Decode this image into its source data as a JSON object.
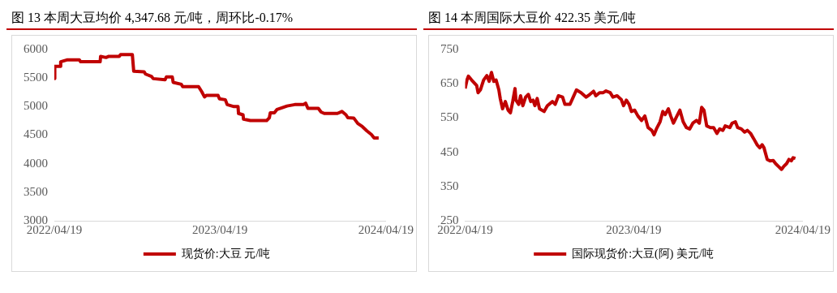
{
  "chart_data": [
    {
      "type": "line",
      "title": "图 13 本周大豆均价 4,347.68 元/吨，周环比-0.17%",
      "legend": "bottom",
      "marker": "none",
      "xlim": [
        "2022-04-19",
        "2024-04-19"
      ],
      "xticks": [
        {
          "value": "2022-04-19",
          "label": "2022/04/19"
        },
        {
          "value": "2023-04-19",
          "label": "2023/04/19"
        },
        {
          "value": "2024-04-19",
          "label": "2024/04/19"
        }
      ],
      "ylim": [
        3000,
        6000
      ],
      "yticks": [
        3000,
        3500,
        4000,
        4500,
        5000,
        5500,
        6000
      ],
      "series": [
        {
          "name": "现货价:大豆 元/吨",
          "color": "#c00000",
          "x": [
            "2022-04-19",
            "2022-04-20",
            "2022-05-02",
            "2022-05-03",
            "2022-05-18",
            "2022-06-13",
            "2022-06-16",
            "2022-07-29",
            "2022-07-30",
            "2022-08-11",
            "2022-08-17",
            "2022-09-09",
            "2022-09-12",
            "2022-10-08",
            "2022-10-11",
            "2022-11-03",
            "2022-11-06",
            "2022-11-19",
            "2022-11-23",
            "2022-12-19",
            "2022-12-22",
            "2023-01-04",
            "2023-01-06",
            "2023-01-24",
            "2023-01-27",
            "2023-03-03",
            "2023-03-10",
            "2023-03-16",
            "2023-03-20",
            "2023-04-15",
            "2023-04-18",
            "2023-05-01",
            "2023-05-05",
            "2023-05-20",
            "2023-05-29",
            "2023-05-30",
            "2023-06-09",
            "2023-06-10",
            "2023-06-25",
            "2023-07-31",
            "2023-08-06",
            "2023-08-08",
            "2023-08-17",
            "2023-08-23",
            "2023-09-05",
            "2023-09-14",
            "2023-10-01",
            "2023-10-20",
            "2023-10-25",
            "2023-10-30",
            "2023-11-22",
            "2023-11-28",
            "2023-12-05",
            "2024-01-03",
            "2024-01-13",
            "2024-01-22",
            "2024-01-26",
            "2024-02-08",
            "2024-02-17",
            "2024-02-27",
            "2024-03-08",
            "2024-03-18",
            "2024-03-24",
            "2024-04-03"
          ],
          "values": [
            5490,
            5705,
            5705,
            5785,
            5820,
            5820,
            5785,
            5785,
            5880,
            5860,
            5880,
            5880,
            5910,
            5910,
            5620,
            5610,
            5570,
            5530,
            5490,
            5470,
            5520,
            5520,
            5425,
            5390,
            5350,
            5350,
            5260,
            5170,
            5195,
            5195,
            5135,
            5120,
            5035,
            5000,
            5000,
            4880,
            4855,
            4780,
            4755,
            4755,
            4805,
            4890,
            4890,
            4950,
            4985,
            5010,
            5035,
            5035,
            5060,
            4970,
            4970,
            4905,
            4880,
            4880,
            4915,
            4855,
            4805,
            4800,
            4705,
            4650,
            4575,
            4510,
            4450,
            4450
          ]
        }
      ]
    },
    {
      "type": "line",
      "title": "图 14 本周国际大豆价 422.35 美元/吨",
      "legend": "bottom",
      "marker": "none",
      "xlim": [
        "2022-04-19",
        "2024-04-19"
      ],
      "xticks": [
        {
          "value": "2022-04-19",
          "label": "2022/04/19"
        },
        {
          "value": "2023-04-19",
          "label": "2023/04/19"
        },
        {
          "value": "2024-04-19",
          "label": "2024/04/19"
        }
      ],
      "ylim": [
        250,
        750
      ],
      "yticks": [
        250,
        350,
        450,
        550,
        650,
        750
      ],
      "series": [
        {
          "name": "国际现货价:大豆(阿) 美元/吨",
          "color": "#c00000",
          "x": [
            "2022-04-19",
            "2022-04-23",
            "2022-04-26",
            "2022-05-03",
            "2022-05-14",
            "2022-05-17",
            "2022-05-22",
            "2022-05-29",
            "2022-06-05",
            "2022-06-10",
            "2022-06-15",
            "2022-06-20",
            "2022-06-25",
            "2022-07-01",
            "2022-07-04",
            "2022-07-09",
            "2022-07-15",
            "2022-07-21",
            "2022-07-26",
            "2022-07-31",
            "2022-08-05",
            "2022-08-07",
            "2022-08-13",
            "2022-08-17",
            "2022-08-22",
            "2022-08-28",
            "2022-09-03",
            "2022-09-08",
            "2022-09-13",
            "2022-09-17",
            "2022-09-22",
            "2022-09-27",
            "2022-10-07",
            "2022-10-14",
            "2022-10-25",
            "2022-10-31",
            "2022-11-07",
            "2022-11-16",
            "2022-11-21",
            "2022-12-02",
            "2022-12-09",
            "2022-12-16",
            "2022-12-26",
            "2023-01-06",
            "2023-01-14",
            "2023-01-22",
            "2023-01-27",
            "2023-02-04",
            "2023-02-12",
            "2023-02-18",
            "2023-02-27",
            "2023-03-05",
            "2023-03-14",
            "2023-03-23",
            "2023-03-28",
            "2023-04-03",
            "2023-04-09",
            "2023-04-14",
            "2023-04-21",
            "2023-04-28",
            "2023-05-06",
            "2023-05-13",
            "2023-05-20",
            "2023-05-28",
            "2023-06-02",
            "2023-06-07",
            "2023-06-15",
            "2023-06-21",
            "2023-06-26",
            "2023-07-03",
            "2023-07-08",
            "2023-07-14",
            "2023-07-20",
            "2023-07-28",
            "2023-08-04",
            "2023-08-11",
            "2023-08-18",
            "2023-08-25",
            "2023-09-02",
            "2023-09-08",
            "2023-09-13",
            "2023-09-18",
            "2023-09-24",
            "2023-10-02",
            "2023-10-09",
            "2023-10-16",
            "2023-10-22",
            "2023-10-29",
            "2023-11-03",
            "2023-11-13",
            "2023-11-18",
            "2023-11-25",
            "2023-11-30",
            "2023-12-08",
            "2023-12-15",
            "2023-12-21",
            "2023-12-28",
            "2024-01-04",
            "2024-01-11",
            "2024-01-17",
            "2024-01-22",
            "2024-01-26",
            "2024-02-02",
            "2024-02-08",
            "2024-02-15",
            "2024-02-20",
            "2024-02-26",
            "2024-03-04",
            "2024-03-09",
            "2024-03-15",
            "2024-03-20",
            "2024-03-25",
            "2024-03-29",
            "2024-04-03"
          ],
          "values": [
            636,
            661,
            672,
            661,
            645,
            624,
            632,
            661,
            674,
            657,
            683,
            657,
            661,
            632,
            607,
            577,
            598,
            573,
            565,
            598,
            636,
            602,
            590,
            615,
            586,
            611,
            619,
            598,
            602,
            586,
            607,
            577,
            569,
            586,
            598,
            590,
            615,
            611,
            590,
            590,
            611,
            632,
            624,
            611,
            619,
            628,
            615,
            624,
            624,
            629,
            624,
            611,
            615,
            604,
            586,
            602,
            590,
            569,
            573,
            556,
            543,
            556,
            522,
            514,
            501,
            518,
            539,
            569,
            560,
            577,
            556,
            535,
            552,
            573,
            539,
            522,
            518,
            535,
            543,
            535,
            581,
            573,
            527,
            522,
            522,
            505,
            518,
            514,
            527,
            522,
            535,
            539,
            522,
            518,
            509,
            514,
            505,
            489,
            472,
            463,
            472,
            463,
            429,
            425,
            426,
            417,
            409,
            400,
            409,
            417,
            429,
            425,
            434,
            432
          ]
        }
      ]
    }
  ]
}
